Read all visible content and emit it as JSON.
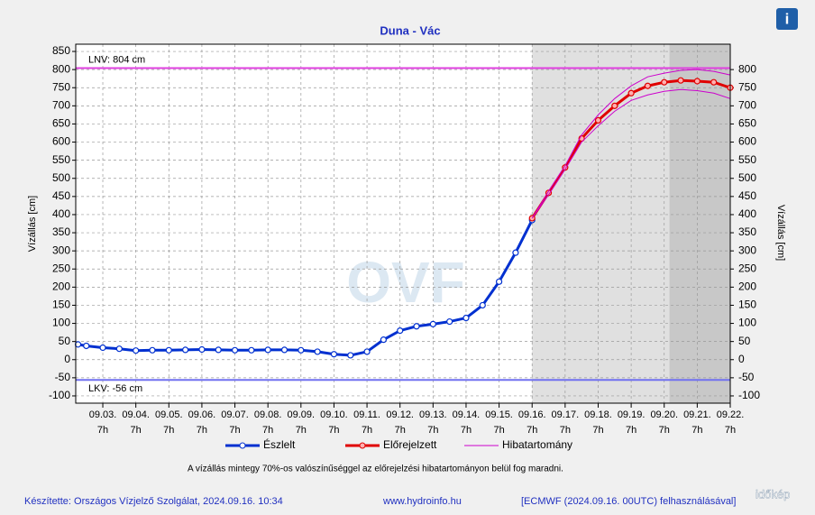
{
  "chart_data": {
    "type": "line",
    "title": "Duna - Vác",
    "y_label": "Vízállás [cm]",
    "y2_label": "Vízállás [cm]",
    "xlim": [
      -0.82,
      19
    ],
    "xticks": [
      {
        "value": 0,
        "label": "09.03."
      },
      {
        "value": 1,
        "label": "09.04."
      },
      {
        "value": 2,
        "label": "09.05."
      },
      {
        "value": 3,
        "label": "09.06."
      },
      {
        "value": 4,
        "label": "09.07."
      },
      {
        "value": 5,
        "label": "09.08."
      },
      {
        "value": 6,
        "label": "09.09."
      },
      {
        "value": 7,
        "label": "09.10."
      },
      {
        "value": 8,
        "label": "09.11."
      },
      {
        "value": 9,
        "label": "09.12."
      },
      {
        "value": 10,
        "label": "09.13."
      },
      {
        "value": 11,
        "label": "09.14."
      },
      {
        "value": 12,
        "label": "09.15."
      },
      {
        "value": 13,
        "label": "09.16."
      },
      {
        "value": 14,
        "label": "09.17."
      },
      {
        "value": 15,
        "label": "09.18."
      },
      {
        "value": 16,
        "label": "09.19."
      },
      {
        "value": 17,
        "label": "09.20."
      },
      {
        "value": 18,
        "label": "09.21."
      },
      {
        "value": 19,
        "label": "09.22."
      }
    ],
    "xtick_hour": "7h",
    "ylim": [
      -120,
      870
    ],
    "yticks": [
      -100,
      -50,
      0,
      50,
      100,
      150,
      200,
      250,
      300,
      350,
      400,
      450,
      500,
      550,
      600,
      650,
      700,
      750,
      800,
      850
    ],
    "y2lim": [
      -120,
      870
    ],
    "y2ticks": [
      -100,
      -50,
      0,
      50,
      100,
      150,
      200,
      250,
      300,
      350,
      400,
      450,
      500,
      550,
      600,
      650,
      700,
      750,
      800
    ],
    "grid": true,
    "shade_regions": [
      {
        "from": 13,
        "to": 19,
        "color": "#e0e0e0"
      },
      {
        "from": 17.16,
        "to": 19,
        "color": "#c8c8c8"
      }
    ],
    "reference_lines": [
      {
        "value": 804,
        "label": "LNV: 804 cm",
        "color": "#e040e0"
      },
      {
        "value": -56,
        "label": "LKV: -56 cm",
        "color": "#7070f0"
      }
    ],
    "series": [
      {
        "name": "Észlelt",
        "color": "#0030d0",
        "marker_fill": "#ffffff",
        "x": [
          -0.75,
          -0.5,
          0,
          0.5,
          1,
          1.5,
          2,
          2.5,
          3,
          3.5,
          4,
          4.5,
          5,
          5.5,
          6,
          6.5,
          7,
          7.5,
          8,
          8.5,
          9,
          9.5,
          10,
          10.5,
          11,
          11.5,
          12,
          12.5,
          13
        ],
        "values": [
          42,
          38,
          33,
          30,
          25,
          26,
          26,
          27,
          28,
          27,
          26,
          26,
          27,
          27,
          26,
          22,
          15,
          12,
          22,
          55,
          80,
          92,
          98,
          105,
          115,
          150,
          215,
          295,
          385
        ]
      },
      {
        "name": "Előrejelzett",
        "color": "#e00000",
        "marker_fill": "#ffb0b0",
        "x": [
          13,
          13.5,
          14,
          14.5,
          15,
          15.5,
          16,
          16.5,
          17,
          17.5,
          18,
          18.5,
          19
        ],
        "values": [
          390,
          460,
          530,
          610,
          660,
          700,
          735,
          755,
          765,
          770,
          768,
          765,
          750
        ]
      },
      {
        "name": "Hibatartomány",
        "color": "#cc00cc",
        "x": [
          13,
          13.5,
          14,
          14.5,
          15,
          15.5,
          16,
          16.5,
          17,
          17.5,
          18,
          18.5,
          19
        ],
        "values": [
          390,
          465,
          535,
          620,
          675,
          720,
          755,
          780,
          790,
          798,
          800,
          795,
          785
        ],
        "lower": [
          390,
          455,
          525,
          600,
          645,
          685,
          715,
          730,
          740,
          745,
          742,
          735,
          720
        ]
      }
    ],
    "note": "A vízállás mintegy 70%-os valószínűséggel az előrejelzési hibatartományon belül fog maradni.",
    "footer_left": "Készítette: Országos Vízjelző Szolgálat, 2024.09.16. 10:34",
    "footer_center": "www.hydroinfo.hu",
    "footer_right": "[ECMWF (2024.09.16. 00UTC) felhasználásával]",
    "watermark": "OVF",
    "brand": "időkép",
    "info_icon": "i"
  }
}
